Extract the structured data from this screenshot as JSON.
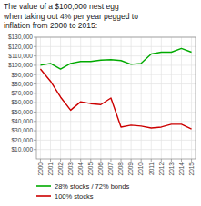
{
  "chart_data": {
    "type": "line",
    "title": "The value of a $100,000 nest egg\nwhen taking out 4% per year pegged to\ninflation from 2000 to 2015:",
    "x": [
      2000,
      2001,
      2002,
      2003,
      2004,
      2005,
      2006,
      2007,
      2008,
      2009,
      2010,
      2011,
      2012,
      2013,
      2014,
      2015
    ],
    "series": [
      {
        "name": "28% stocks / 72% bonds",
        "color": "#00aa00",
        "values": [
          100000,
          102000,
          96000,
          102000,
          104000,
          104000,
          105500,
          106000,
          105000,
          101000,
          102000,
          112000,
          114000,
          114000,
          118000,
          114000
        ]
      },
      {
        "name": "100% stocks",
        "color": "#cc0000",
        "values": [
          96000,
          83000,
          66000,
          52000,
          61000,
          59000,
          58000,
          65000,
          34000,
          36000,
          35000,
          33000,
          34000,
          37000,
          37000,
          32000
        ]
      }
    ],
    "xlim": [
      1999.6,
      2015.4
    ],
    "xticks": [
      2000,
      2001,
      2002,
      2003,
      2004,
      2005,
      2006,
      2007,
      2008,
      2009,
      2010,
      2011,
      2012,
      2013,
      2014,
      2015
    ],
    "ylim": [
      0,
      130000
    ],
    "yticks": [
      {
        "value": 10000,
        "label": "$10,000"
      },
      {
        "value": 20000,
        "label": "$20,000"
      },
      {
        "value": 30000,
        "label": "$30,000"
      },
      {
        "value": 40000,
        "label": "$40,000"
      },
      {
        "value": 50000,
        "label": "$50,000"
      },
      {
        "value": 60000,
        "label": "$60,000"
      },
      {
        "value": 70000,
        "label": "$70,000"
      },
      {
        "value": 80000,
        "label": "$80,000"
      },
      {
        "value": 90000,
        "label": "$90,000"
      },
      {
        "value": 100000,
        "label": "$100,000"
      },
      {
        "value": 110000,
        "label": "$110,000"
      },
      {
        "value": 120000,
        "label": "$120,000"
      },
      {
        "value": 130000,
        "label": "$130,000"
      }
    ],
    "grid": true,
    "legend": "bottom"
  }
}
